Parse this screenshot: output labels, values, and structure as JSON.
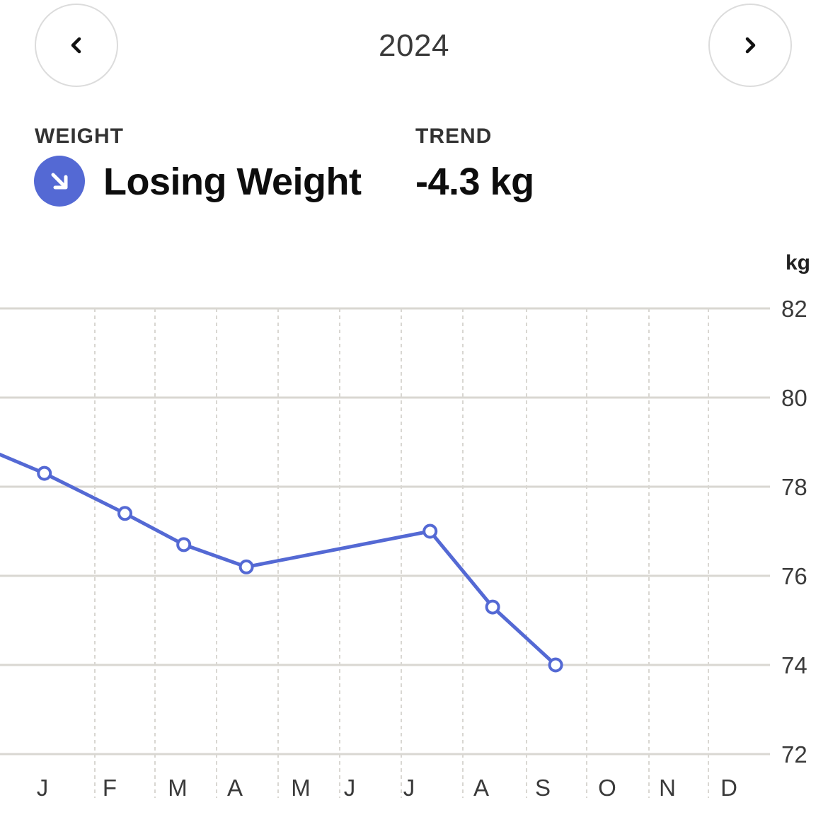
{
  "header": {
    "year": "2024",
    "prev_icon": "chevron-left-icon",
    "next_icon": "chevron-right-icon"
  },
  "stats": {
    "weight_label": "WEIGHT",
    "status_icon": "arrow-down-right-icon",
    "status_text": "Losing Weight",
    "trend_label": "TREND",
    "trend_value": "-4.3 kg"
  },
  "colors": {
    "accent": "#5469d4",
    "gridline": "#d9d7d2",
    "text_dark": "#0d0d0d",
    "text_muted": "#3a3a3a"
  },
  "chart_data": {
    "type": "line",
    "ylabel": "kg",
    "ylim": [
      72,
      82
    ],
    "yticks": [
      "82",
      "80",
      "78",
      "76",
      "74",
      "72"
    ],
    "categories": [
      "J",
      "F",
      "M",
      "A",
      "M",
      "J",
      "J",
      "A",
      "S",
      "O",
      "N",
      "D"
    ],
    "grid": true,
    "series": [
      {
        "x": [
          "2023-12-15",
          "2024-01-15",
          "2024-02-15",
          "2024-03-15",
          "2024-04-15",
          "2024-07-15",
          "2024-08-15",
          "2024-09-15"
        ],
        "y": [
          79.2,
          78.3,
          77.4,
          76.7,
          76.2,
          77.0,
          75.3,
          74.0
        ],
        "markers": [
          false,
          true,
          true,
          true,
          true,
          true,
          true,
          true
        ]
      }
    ]
  }
}
